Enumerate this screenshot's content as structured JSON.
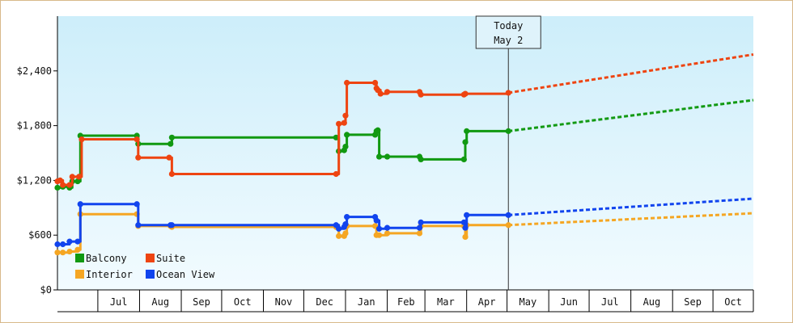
{
  "chart_data": {
    "type": "line",
    "today_marker": {
      "line1": "Today",
      "line2": "May 2",
      "date": "2025-05-02"
    },
    "ylim": [
      0,
      3000
    ],
    "y_ticks": [
      {
        "value": 0,
        "label": "$0"
      },
      {
        "value": 600,
        "label": "$600"
      },
      {
        "value": 1200,
        "label": "$1,200"
      },
      {
        "value": 1800,
        "label": "$1,800"
      },
      {
        "value": 2400,
        "label": "$2,400"
      }
    ],
    "x_range": [
      "2024-06-01",
      "2025-10-31"
    ],
    "x_ticks": [
      {
        "label": "Jul",
        "start": "2024-07-01",
        "end": "2024-08-01"
      },
      {
        "label": "Aug",
        "start": "2024-08-01",
        "end": "2024-09-01"
      },
      {
        "label": "Sep",
        "start": "2024-09-01",
        "end": "2024-10-01"
      },
      {
        "label": "Oct",
        "start": "2024-10-01",
        "end": "2024-11-01"
      },
      {
        "label": "Nov",
        "start": "2024-11-01",
        "end": "2024-12-01"
      },
      {
        "label": "Dec",
        "start": "2024-12-01",
        "end": "2025-01-01"
      },
      {
        "label": "Jan",
        "start": "2025-01-01",
        "end": "2025-02-01"
      },
      {
        "label": "Feb",
        "start": "2025-02-01",
        "end": "2025-03-01"
      },
      {
        "label": "Mar",
        "start": "2025-03-01",
        "end": "2025-04-01"
      },
      {
        "label": "Apr",
        "start": "2025-04-01",
        "end": "2025-05-01"
      },
      {
        "label": "May",
        "start": "2025-05-01",
        "end": "2025-06-01"
      },
      {
        "label": "Jun",
        "start": "2025-06-01",
        "end": "2025-07-01"
      },
      {
        "label": "Jul",
        "start": "2025-07-01",
        "end": "2025-08-01"
      },
      {
        "label": "Aug",
        "start": "2025-08-01",
        "end": "2025-09-01"
      },
      {
        "label": "Sep",
        "start": "2025-09-01",
        "end": "2025-10-01"
      },
      {
        "label": "Oct",
        "start": "2025-10-01",
        "end": "2025-10-31"
      }
    ],
    "grid": false,
    "legend_position": "bottom-left",
    "series": [
      {
        "name": "Balcony",
        "color": "#119911",
        "points": [
          {
            "date": "2024-06-01",
            "value": 1120
          },
          {
            "date": "2024-06-05",
            "value": 1130
          },
          {
            "date": "2024-06-10",
            "value": 1120
          },
          {
            "date": "2024-06-12",
            "value": 1190
          },
          {
            "date": "2024-06-16",
            "value": 1190
          },
          {
            "date": "2024-06-18",
            "value": 1690
          },
          {
            "date": "2024-07-30",
            "value": 1690
          },
          {
            "date": "2024-07-31",
            "value": 1600
          },
          {
            "date": "2024-08-24",
            "value": 1600
          },
          {
            "date": "2024-08-25",
            "value": 1670
          },
          {
            "date": "2024-12-25",
            "value": 1670
          },
          {
            "date": "2024-12-27",
            "value": 1520
          },
          {
            "date": "2024-12-31",
            "value": 1530
          },
          {
            "date": "2025-01-01",
            "value": 1570
          },
          {
            "date": "2025-01-02",
            "value": 1700
          },
          {
            "date": "2025-01-23",
            "value": 1700
          },
          {
            "date": "2025-01-24",
            "value": 1740
          },
          {
            "date": "2025-01-25",
            "value": 1750
          },
          {
            "date": "2025-01-26",
            "value": 1460
          },
          {
            "date": "2025-02-01",
            "value": 1460
          },
          {
            "date": "2025-02-25",
            "value": 1460
          },
          {
            "date": "2025-02-26",
            "value": 1430
          },
          {
            "date": "2025-03-30",
            "value": 1430
          },
          {
            "date": "2025-03-31",
            "value": 1620
          },
          {
            "date": "2025-04-01",
            "value": 1740
          },
          {
            "date": "2025-05-02",
            "value": 1740
          }
        ],
        "forecast": [
          {
            "date": "2025-05-02",
            "value": 1740
          },
          {
            "date": "2025-10-31",
            "value": 2080
          }
        ]
      },
      {
        "name": "Suite",
        "color": "#ee4411",
        "points": [
          {
            "date": "2024-06-01",
            "value": 1190
          },
          {
            "date": "2024-06-03",
            "value": 1200
          },
          {
            "date": "2024-06-05",
            "value": 1150
          },
          {
            "date": "2024-06-10",
            "value": 1150
          },
          {
            "date": "2024-06-12",
            "value": 1240
          },
          {
            "date": "2024-06-17",
            "value": 1240
          },
          {
            "date": "2024-06-19",
            "value": 1650
          },
          {
            "date": "2024-07-30",
            "value": 1650
          },
          {
            "date": "2024-07-31",
            "value": 1450
          },
          {
            "date": "2024-08-23",
            "value": 1450
          },
          {
            "date": "2024-08-25",
            "value": 1270
          },
          {
            "date": "2024-12-25",
            "value": 1270
          },
          {
            "date": "2024-12-27",
            "value": 1820
          },
          {
            "date": "2024-12-31",
            "value": 1830
          },
          {
            "date": "2025-01-01",
            "value": 1910
          },
          {
            "date": "2025-01-02",
            "value": 2270
          },
          {
            "date": "2025-01-23",
            "value": 2270
          },
          {
            "date": "2025-01-24",
            "value": 2210
          },
          {
            "date": "2025-01-25",
            "value": 2190
          },
          {
            "date": "2025-01-27",
            "value": 2150
          },
          {
            "date": "2025-02-01",
            "value": 2170
          },
          {
            "date": "2025-02-25",
            "value": 2170
          },
          {
            "date": "2025-02-26",
            "value": 2140
          },
          {
            "date": "2025-03-30",
            "value": 2140
          },
          {
            "date": "2025-03-31",
            "value": 2150
          },
          {
            "date": "2025-05-02",
            "value": 2160
          }
        ],
        "forecast": [
          {
            "date": "2025-05-02",
            "value": 2160
          },
          {
            "date": "2025-10-31",
            "value": 2580
          }
        ]
      },
      {
        "name": "Interior",
        "color": "#f5a623",
        "points": [
          {
            "date": "2024-06-01",
            "value": 410
          },
          {
            "date": "2024-06-05",
            "value": 410
          },
          {
            "date": "2024-06-10",
            "value": 420
          },
          {
            "date": "2024-06-16",
            "value": 440
          },
          {
            "date": "2024-06-18",
            "value": 830
          },
          {
            "date": "2024-07-30",
            "value": 830
          },
          {
            "date": "2024-07-31",
            "value": 700
          },
          {
            "date": "2024-08-24",
            "value": 700
          },
          {
            "date": "2024-08-25",
            "value": 690
          },
          {
            "date": "2024-12-25",
            "value": 690
          },
          {
            "date": "2024-12-27",
            "value": 590
          },
          {
            "date": "2024-12-31",
            "value": 590
          },
          {
            "date": "2025-01-01",
            "value": 620
          },
          {
            "date": "2025-01-02",
            "value": 700
          },
          {
            "date": "2025-01-23",
            "value": 700
          },
          {
            "date": "2025-01-24",
            "value": 600
          },
          {
            "date": "2025-01-26",
            "value": 600
          },
          {
            "date": "2025-02-01",
            "value": 620
          },
          {
            "date": "2025-02-25",
            "value": 620
          },
          {
            "date": "2025-02-26",
            "value": 700
          },
          {
            "date": "2025-03-30",
            "value": 700
          },
          {
            "date": "2025-03-31",
            "value": 580
          },
          {
            "date": "2025-04-01",
            "value": 710
          },
          {
            "date": "2025-05-02",
            "value": 710
          }
        ],
        "forecast": [
          {
            "date": "2025-05-02",
            "value": 710
          },
          {
            "date": "2025-10-31",
            "value": 840
          }
        ]
      },
      {
        "name": "Ocean View",
        "color": "#1144ee",
        "points": [
          {
            "date": "2024-06-01",
            "value": 500
          },
          {
            "date": "2024-06-05",
            "value": 500
          },
          {
            "date": "2024-06-10",
            "value": 530
          },
          {
            "date": "2024-06-16",
            "value": 530
          },
          {
            "date": "2024-06-18",
            "value": 940
          },
          {
            "date": "2024-07-30",
            "value": 940
          },
          {
            "date": "2024-07-31",
            "value": 710
          },
          {
            "date": "2024-08-24",
            "value": 710
          },
          {
            "date": "2024-08-25",
            "value": 710
          },
          {
            "date": "2024-12-25",
            "value": 710
          },
          {
            "date": "2024-12-27",
            "value": 670
          },
          {
            "date": "2024-12-31",
            "value": 690
          },
          {
            "date": "2025-01-01",
            "value": 720
          },
          {
            "date": "2025-01-02",
            "value": 800
          },
          {
            "date": "2025-01-23",
            "value": 800
          },
          {
            "date": "2025-01-24",
            "value": 760
          },
          {
            "date": "2025-01-26",
            "value": 670
          },
          {
            "date": "2025-02-01",
            "value": 680
          },
          {
            "date": "2025-02-25",
            "value": 680
          },
          {
            "date": "2025-02-26",
            "value": 740
          },
          {
            "date": "2025-03-30",
            "value": 740
          },
          {
            "date": "2025-03-31",
            "value": 680
          },
          {
            "date": "2025-04-01",
            "value": 820
          },
          {
            "date": "2025-05-02",
            "value": 820
          }
        ],
        "forecast": [
          {
            "date": "2025-05-02",
            "value": 820
          },
          {
            "date": "2025-10-31",
            "value": 1000
          }
        ]
      }
    ]
  }
}
